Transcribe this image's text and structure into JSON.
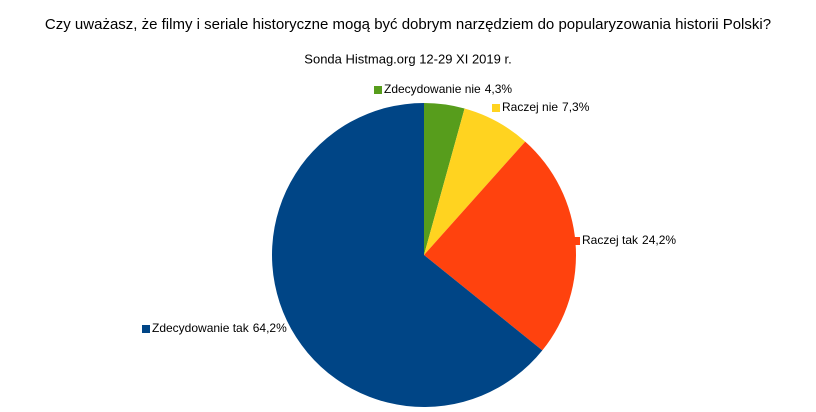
{
  "chart_data": {
    "type": "pie",
    "title": "Czy uważasz, że filmy i seriale historyczne mogą być dobrym narzędziem do popularyzowania historii Polski?",
    "subtitle": "Sonda Histmag.org 12-29 XI 2019 r.",
    "categories": [
      "Zdecydowanie nie",
      "Raczej nie",
      "Raczej tak",
      "Zdecydowanie tak"
    ],
    "values": [
      4.3,
      7.3,
      24.2,
      64.2
    ],
    "value_labels": [
      "4,3%",
      "7,3%",
      "24,2%",
      "64,2%"
    ],
    "colors": [
      "#579d1c",
      "#ffd320",
      "#ff420e",
      "#004586"
    ]
  }
}
